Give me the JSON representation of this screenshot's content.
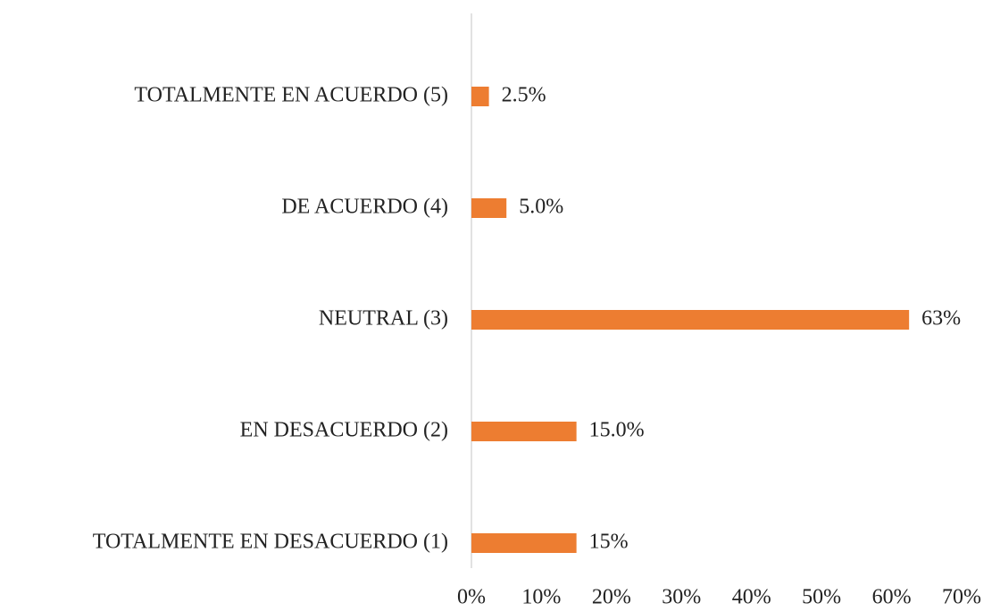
{
  "chart_data": {
    "type": "barh",
    "categories": [
      "TOTALMENTE EN ACUERDO (5)",
      "DE ACUERDO (4)",
      "NEUTRAL (3)",
      "EN DESACUERDO (2)",
      "TOTALMENTE EN DESACUERDO (1)"
    ],
    "values": [
      2.5,
      5,
      62.5,
      15,
      15
    ],
    "value_labels": [
      "2.5%",
      "5.0%",
      "63%",
      "15.0%",
      "15%"
    ],
    "color": "#ed7d31",
    "xlim": [
      0,
      70
    ],
    "xticks": [
      {
        "value": 0,
        "label": "0%"
      },
      {
        "value": 10,
        "label": "10%"
      },
      {
        "value": 20,
        "label": "20%"
      },
      {
        "value": 30,
        "label": "30%"
      },
      {
        "value": 40,
        "label": "40%"
      },
      {
        "value": 50,
        "label": "50%"
      },
      {
        "value": 60,
        "label": "60%"
      },
      {
        "value": 70,
        "label": "70%"
      }
    ],
    "grid": false
  }
}
